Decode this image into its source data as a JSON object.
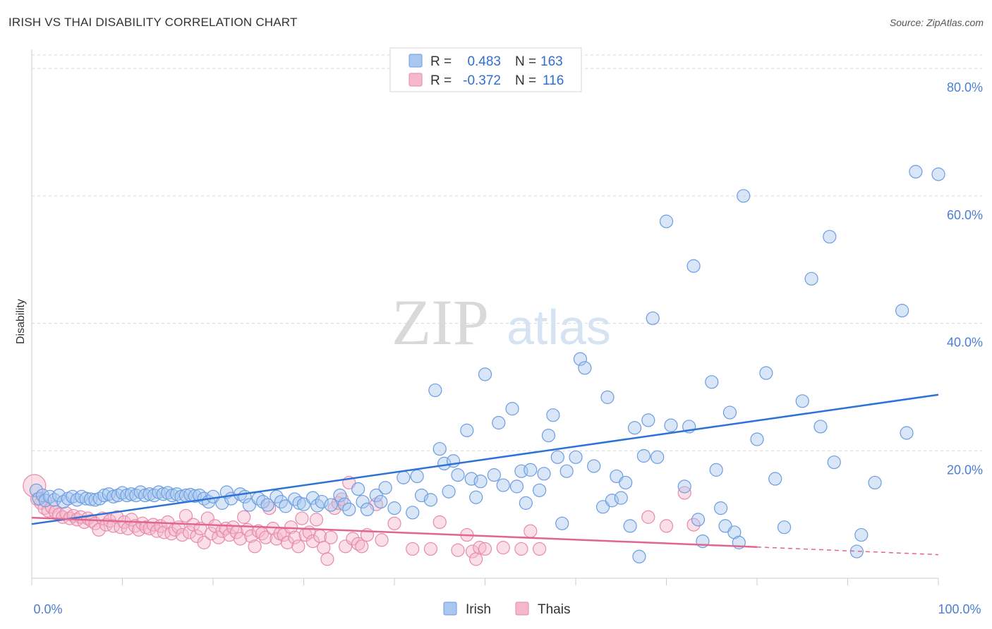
{
  "header": {
    "title": "IRISH VS THAI DISABILITY CORRELATION CHART",
    "source": "Source: ZipAtlas.com"
  },
  "watermark": {
    "zip": "ZIP",
    "atlas": "atlas"
  },
  "colors": {
    "irish_fill": "#a9c8f0",
    "irish_stroke": "#6b9de0",
    "irish_line": "#2f72d6",
    "thais_fill": "#f5b8cb",
    "thais_stroke": "#e88aa8",
    "thais_line": "#e0668e",
    "tick_label": "#4a7fd4",
    "grid": "#d9d9d9"
  },
  "legend": {
    "rows": [
      {
        "series": "Irish",
        "r_label": "R =",
        "r_value": "0.483",
        "n_label": "N =",
        "n_value": "163"
      },
      {
        "series": "Thais",
        "r_label": "R =",
        "r_value": "-0.372",
        "n_label": "N =",
        "n_value": "116"
      }
    ]
  },
  "chart_data": {
    "type": "scatter",
    "title": "IRISH VS THAI DISABILITY CORRELATION CHART",
    "xlabel": "",
    "ylabel": "Disability",
    "xlim": [
      0,
      100
    ],
    "ylim": [
      0,
      83
    ],
    "x_tick_labels": [
      "0.0%",
      "100.0%"
    ],
    "y_ticks": [
      20,
      40,
      60,
      80
    ],
    "y_tick_labels": [
      "20.0%",
      "40.0%",
      "60.0%",
      "80.0%"
    ],
    "grid": true,
    "legend_position": "top-center",
    "series": [
      {
        "name": "Irish",
        "trend": {
          "x": [
            0,
            100
          ],
          "y": [
            8.5,
            28.8
          ]
        },
        "points": [
          [
            0.5,
            13.8
          ],
          [
            0.8,
            12.5
          ],
          [
            1.2,
            13.0
          ],
          [
            1.5,
            12.2
          ],
          [
            2.0,
            12.8
          ],
          [
            2.5,
            12.3
          ],
          [
            3.0,
            13.0
          ],
          [
            3.5,
            12.0
          ],
          [
            4.0,
            12.5
          ],
          [
            4.5,
            12.8
          ],
          [
            5.0,
            12.3
          ],
          [
            5.5,
            12.8
          ],
          [
            6.0,
            12.5
          ],
          [
            6.5,
            12.4
          ],
          [
            7.0,
            12.3
          ],
          [
            7.5,
            12.5
          ],
          [
            8.0,
            13.0
          ],
          [
            8.5,
            13.2
          ],
          [
            9.0,
            12.8
          ],
          [
            9.5,
            13.0
          ],
          [
            10.0,
            13.4
          ],
          [
            10.5,
            13.0
          ],
          [
            11.0,
            13.2
          ],
          [
            11.5,
            13.0
          ],
          [
            12.0,
            13.5
          ],
          [
            12.5,
            13.0
          ],
          [
            13.0,
            13.2
          ],
          [
            13.5,
            13.0
          ],
          [
            14.0,
            13.5
          ],
          [
            14.5,
            13.2
          ],
          [
            15.0,
            13.4
          ],
          [
            15.5,
            13.0
          ],
          [
            16.0,
            13.2
          ],
          [
            16.5,
            12.8
          ],
          [
            17.0,
            13.0
          ],
          [
            17.5,
            13.1
          ],
          [
            18.0,
            12.9
          ],
          [
            18.5,
            13.0
          ],
          [
            19.0,
            12.5
          ],
          [
            19.5,
            12.0
          ],
          [
            20.0,
            12.8
          ],
          [
            21.0,
            11.8
          ],
          [
            21.5,
            13.5
          ],
          [
            22.0,
            12.5
          ],
          [
            23.0,
            13.2
          ],
          [
            23.5,
            12.8
          ],
          [
            24.0,
            11.5
          ],
          [
            25.0,
            12.5
          ],
          [
            25.5,
            12.0
          ],
          [
            26.0,
            11.5
          ],
          [
            27.0,
            12.8
          ],
          [
            27.5,
            12.0
          ],
          [
            28.0,
            11.3
          ],
          [
            29.0,
            12.4
          ],
          [
            29.5,
            11.8
          ],
          [
            30.0,
            11.6
          ],
          [
            31.0,
            12.6
          ],
          [
            31.5,
            11.4
          ],
          [
            32.0,
            12.0
          ],
          [
            33.0,
            11.5
          ],
          [
            34.0,
            13.0
          ],
          [
            34.5,
            11.6
          ],
          [
            35.0,
            10.8
          ],
          [
            36.0,
            14.0
          ],
          [
            36.5,
            12.0
          ],
          [
            37.0,
            10.8
          ],
          [
            38.0,
            13.0
          ],
          [
            38.5,
            12.0
          ],
          [
            39.0,
            14.2
          ],
          [
            40.0,
            11.0
          ],
          [
            41.0,
            15.8
          ],
          [
            42.0,
            10.3
          ],
          [
            42.5,
            16.0
          ],
          [
            43.0,
            13.0
          ],
          [
            44.0,
            12.3
          ],
          [
            44.5,
            29.5
          ],
          [
            45.0,
            20.3
          ],
          [
            45.5,
            18.0
          ],
          [
            46.0,
            13.6
          ],
          [
            46.5,
            18.4
          ],
          [
            47.0,
            16.2
          ],
          [
            48.0,
            23.2
          ],
          [
            48.5,
            15.6
          ],
          [
            49.0,
            12.7
          ],
          [
            49.5,
            15.2
          ],
          [
            50.0,
            32.0
          ],
          [
            51.0,
            16.2
          ],
          [
            51.5,
            24.4
          ],
          [
            52.0,
            14.6
          ],
          [
            53.0,
            26.6
          ],
          [
            53.5,
            14.4
          ],
          [
            54.0,
            16.8
          ],
          [
            54.5,
            11.8
          ],
          [
            55.0,
            17.0
          ],
          [
            56.0,
            13.8
          ],
          [
            56.5,
            16.4
          ],
          [
            57.0,
            22.4
          ],
          [
            57.5,
            25.6
          ],
          [
            58.0,
            19.0
          ],
          [
            58.5,
            8.6
          ],
          [
            59.0,
            16.8
          ],
          [
            60.0,
            19.0
          ],
          [
            60.5,
            34.4
          ],
          [
            61.0,
            33.0
          ],
          [
            62.0,
            17.6
          ],
          [
            63.0,
            11.2
          ],
          [
            63.5,
            28.4
          ],
          [
            64.0,
            12.2
          ],
          [
            64.5,
            16.0
          ],
          [
            65.0,
            12.6
          ],
          [
            65.5,
            15.0
          ],
          [
            66.0,
            8.2
          ],
          [
            66.5,
            23.6
          ],
          [
            67.0,
            3.4
          ],
          [
            67.5,
            19.2
          ],
          [
            68.0,
            24.8
          ],
          [
            68.5,
            40.8
          ],
          [
            69.0,
            19.0
          ],
          [
            70.0,
            56.0
          ],
          [
            70.5,
            24.0
          ],
          [
            72.0,
            14.4
          ],
          [
            72.5,
            23.8
          ],
          [
            73.0,
            49.0
          ],
          [
            73.5,
            9.2
          ],
          [
            74.0,
            5.8
          ],
          [
            75.0,
            30.8
          ],
          [
            75.5,
            17.0
          ],
          [
            76.0,
            11.0
          ],
          [
            76.5,
            8.2
          ],
          [
            77.0,
            26.0
          ],
          [
            77.5,
            7.2
          ],
          [
            78.0,
            5.6
          ],
          [
            78.5,
            60.0
          ],
          [
            80.0,
            21.8
          ],
          [
            81.0,
            32.2
          ],
          [
            82.0,
            15.6
          ],
          [
            83.0,
            8.0
          ],
          [
            85.0,
            27.8
          ],
          [
            86.0,
            47.0
          ],
          [
            87.0,
            23.8
          ],
          [
            88.0,
            53.6
          ],
          [
            88.5,
            18.2
          ],
          [
            91.0,
            4.2
          ],
          [
            91.5,
            6.8
          ],
          [
            93.0,
            15.0
          ],
          [
            96.0,
            42.0
          ],
          [
            96.5,
            22.8
          ],
          [
            97.5,
            63.8
          ],
          [
            100.0,
            63.4
          ]
        ]
      },
      {
        "name": "Thais",
        "trend": {
          "x": [
            0,
            80,
            100
          ],
          "y": [
            9.5,
            4.9,
            3.7
          ],
          "dashed_from_x": 80
        },
        "points": [
          [
            0.3,
            14.5
          ],
          [
            0.6,
            12.4
          ],
          [
            1.0,
            11.8
          ],
          [
            1.4,
            11.0
          ],
          [
            1.8,
            10.6
          ],
          [
            2.2,
            11.2
          ],
          [
            2.6,
            10.4
          ],
          [
            3.0,
            10.0
          ],
          [
            3.4,
            9.6
          ],
          [
            3.8,
            10.2
          ],
          [
            4.2,
            9.4
          ],
          [
            4.6,
            9.8
          ],
          [
            5.0,
            9.2
          ],
          [
            5.4,
            9.6
          ],
          [
            5.8,
            8.8
          ],
          [
            6.2,
            9.4
          ],
          [
            6.6,
            9.0
          ],
          [
            7.0,
            8.6
          ],
          [
            7.4,
            7.6
          ],
          [
            7.8,
            9.4
          ],
          [
            8.2,
            8.4
          ],
          [
            8.6,
            9.0
          ],
          [
            9.0,
            8.2
          ],
          [
            9.4,
            9.6
          ],
          [
            9.8,
            8.0
          ],
          [
            10.2,
            8.8
          ],
          [
            10.6,
            7.8
          ],
          [
            11.0,
            9.2
          ],
          [
            11.4,
            8.2
          ],
          [
            11.8,
            7.6
          ],
          [
            12.2,
            8.6
          ],
          [
            12.6,
            8.0
          ],
          [
            13.0,
            7.8
          ],
          [
            13.4,
            8.4
          ],
          [
            13.8,
            7.4
          ],
          [
            14.2,
            8.2
          ],
          [
            14.6,
            7.2
          ],
          [
            15.0,
            8.8
          ],
          [
            15.4,
            7.0
          ],
          [
            15.8,
            7.6
          ],
          [
            16.2,
            8.0
          ],
          [
            16.6,
            6.8
          ],
          [
            17.0,
            9.8
          ],
          [
            17.4,
            7.2
          ],
          [
            17.8,
            8.4
          ],
          [
            18.2,
            6.6
          ],
          [
            18.6,
            7.8
          ],
          [
            19.0,
            5.6
          ],
          [
            19.4,
            9.4
          ],
          [
            19.8,
            7.0
          ],
          [
            20.2,
            8.2
          ],
          [
            20.6,
            6.4
          ],
          [
            21.0,
            7.4
          ],
          [
            21.4,
            7.8
          ],
          [
            21.8,
            6.8
          ],
          [
            22.2,
            8.0
          ],
          [
            22.6,
            7.2
          ],
          [
            23.0,
            6.2
          ],
          [
            23.4,
            9.6
          ],
          [
            23.8,
            7.6
          ],
          [
            24.2,
            6.6
          ],
          [
            24.6,
            5.0
          ],
          [
            25.0,
            7.4
          ],
          [
            25.4,
            7.0
          ],
          [
            25.8,
            6.4
          ],
          [
            26.2,
            11.0
          ],
          [
            26.6,
            7.8
          ],
          [
            27.0,
            6.2
          ],
          [
            27.4,
            7.0
          ],
          [
            27.8,
            6.8
          ],
          [
            28.2,
            5.6
          ],
          [
            28.6,
            8.0
          ],
          [
            29.0,
            6.4
          ],
          [
            29.4,
            5.0
          ],
          [
            29.8,
            9.4
          ],
          [
            30.2,
            6.8
          ],
          [
            30.6,
            7.2
          ],
          [
            31.0,
            5.8
          ],
          [
            31.4,
            9.2
          ],
          [
            31.8,
            6.6
          ],
          [
            32.2,
            4.8
          ],
          [
            32.6,
            3.0
          ],
          [
            33.0,
            6.4
          ],
          [
            33.4,
            11.0
          ],
          [
            33.8,
            11.8
          ],
          [
            34.2,
            12.4
          ],
          [
            34.6,
            5.0
          ],
          [
            35.0,
            15.0
          ],
          [
            35.4,
            6.2
          ],
          [
            36.0,
            5.4
          ],
          [
            36.4,
            5.0
          ],
          [
            37.0,
            6.8
          ],
          [
            38.0,
            11.6
          ],
          [
            38.6,
            6.0
          ],
          [
            40.0,
            8.6
          ],
          [
            42.0,
            4.6
          ],
          [
            44.0,
            4.6
          ],
          [
            45.0,
            8.8
          ],
          [
            47.0,
            4.4
          ],
          [
            48.0,
            6.8
          ],
          [
            48.6,
            4.2
          ],
          [
            49.0,
            3.0
          ],
          [
            49.4,
            4.8
          ],
          [
            50.0,
            4.6
          ],
          [
            52.0,
            4.8
          ],
          [
            54.0,
            4.6
          ],
          [
            55.0,
            7.4
          ],
          [
            56.0,
            4.6
          ],
          [
            68.0,
            9.6
          ],
          [
            70.0,
            8.2
          ],
          [
            72.0,
            13.4
          ],
          [
            73.0,
            8.4
          ]
        ]
      }
    ]
  },
  "bottom_legend": {
    "items": [
      "Irish",
      "Thais"
    ]
  }
}
